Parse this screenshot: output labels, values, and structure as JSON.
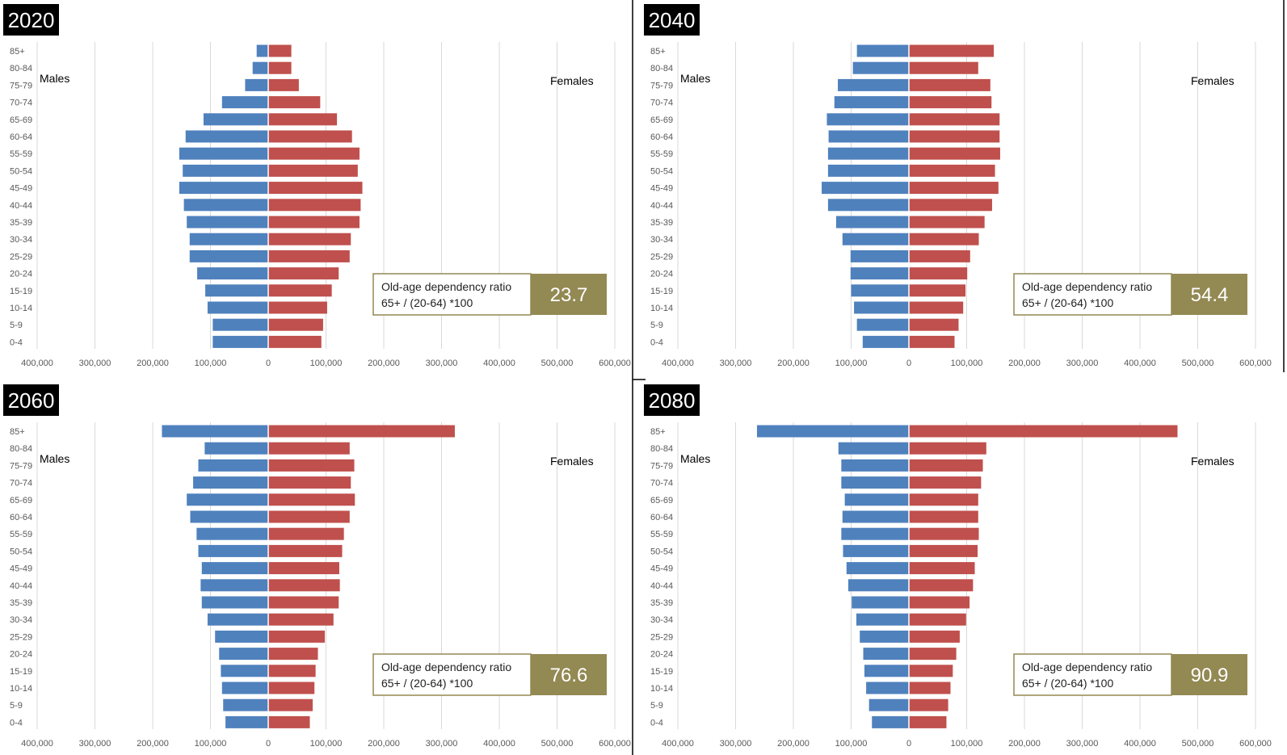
{
  "males_label": "Males",
  "females_label": "Females",
  "ratio_title": "Old-age dependency ratio",
  "ratio_formula": "65+ / (20-64) *100",
  "x_tick_labels": [
    "400,000",
    "300,000",
    "200,000",
    "100,000",
    "0",
    "100,000",
    "200,000",
    "300,000",
    "400,000",
    "500,000",
    "600,000"
  ],
  "colors": {
    "male": "#4F81BD",
    "female": "#C0504D",
    "ratio_box": "#938953",
    "year_box": "#000000",
    "grid": "#D9D9D9"
  },
  "chart_data": [
    {
      "type": "bar",
      "year": "2020",
      "ratio": "23.7",
      "categories": [
        "85+",
        "80-84",
        "75-79",
        "70-74",
        "65-69",
        "60-64",
        "55-59",
        "50-54",
        "45-49",
        "40-44",
        "35-39",
        "30-34",
        "25-29",
        "20-24",
        "15-19",
        "10-14",
        "5-9",
        "0-4"
      ],
      "xlim": [
        -400000,
        600000
      ],
      "series": [
        {
          "name": "Males",
          "values": [
            20000,
            27000,
            40000,
            80000,
            112000,
            143000,
            154000,
            148000,
            154000,
            146000,
            141000,
            136000,
            136000,
            123000,
            109000,
            105000,
            96000,
            96000
          ]
        },
        {
          "name": "Females",
          "values": [
            40000,
            40000,
            53000,
            90000,
            119000,
            145000,
            158000,
            155000,
            163000,
            160000,
            158000,
            143000,
            141000,
            122000,
            110000,
            102000,
            95000,
            92000
          ]
        }
      ]
    },
    {
      "type": "bar",
      "year": "2040",
      "ratio": "54.4",
      "categories": [
        "85+",
        "80-84",
        "75-79",
        "70-74",
        "65-69",
        "60-64",
        "55-59",
        "50-54",
        "45-49",
        "40-44",
        "35-39",
        "30-34",
        "25-29",
        "20-24",
        "15-19",
        "10-14",
        "5-9",
        "0-4"
      ],
      "xlim": [
        -400000,
        600000
      ],
      "series": [
        {
          "name": "Males",
          "values": [
            90000,
            97000,
            123000,
            129000,
            142000,
            139000,
            140000,
            140000,
            151000,
            140000,
            126000,
            115000,
            101000,
            101000,
            100000,
            95000,
            90000,
            80000
          ]
        },
        {
          "name": "Females",
          "values": [
            147000,
            120000,
            141000,
            143000,
            157000,
            157000,
            158000,
            149000,
            155000,
            144000,
            131000,
            121000,
            106000,
            101000,
            98000,
            94000,
            86000,
            79000
          ]
        }
      ]
    },
    {
      "type": "bar",
      "year": "2060",
      "ratio": "76.6",
      "categories": [
        "85+",
        "80-84",
        "75-79",
        "70-74",
        "65-69",
        "60-64",
        "55-59",
        "50-54",
        "45-49",
        "40-44",
        "35-39",
        "30-34",
        "25-29",
        "20-24",
        "15-19",
        "10-14",
        "5-9",
        "0-4"
      ],
      "xlim": [
        -400000,
        600000
      ],
      "series": [
        {
          "name": "Males",
          "values": [
            184000,
            110000,
            121000,
            130000,
            141000,
            135000,
            124000,
            121000,
            115000,
            117000,
            115000,
            105000,
            92000,
            85000,
            82000,
            80000,
            78000,
            74000
          ]
        },
        {
          "name": "Females",
          "values": [
            323000,
            141000,
            149000,
            143000,
            150000,
            141000,
            131000,
            128000,
            123000,
            124000,
            122000,
            113000,
            98000,
            86000,
            82000,
            80000,
            77000,
            72000
          ]
        }
      ]
    },
    {
      "type": "bar",
      "year": "2080",
      "ratio": "90.9",
      "categories": [
        "85+",
        "80-84",
        "75-79",
        "70-74",
        "65-69",
        "60-64",
        "55-59",
        "50-54",
        "45-49",
        "40-44",
        "35-39",
        "30-34",
        "25-29",
        "20-24",
        "15-19",
        "10-14",
        "5-9",
        "0-4"
      ],
      "xlim": [
        -400000,
        600000
      ],
      "series": [
        {
          "name": "Males",
          "values": [
            263000,
            122000,
            117000,
            117000,
            111000,
            115000,
            117000,
            114000,
            108000,
            105000,
            99000,
            91000,
            85000,
            79000,
            77000,
            74000,
            69000,
            64000
          ]
        },
        {
          "name": "Females",
          "values": [
            465000,
            134000,
            128000,
            125000,
            120000,
            120000,
            121000,
            119000,
            114000,
            111000,
            105000,
            99000,
            88000,
            82000,
            76000,
            72000,
            68000,
            65000
          ]
        }
      ]
    }
  ]
}
